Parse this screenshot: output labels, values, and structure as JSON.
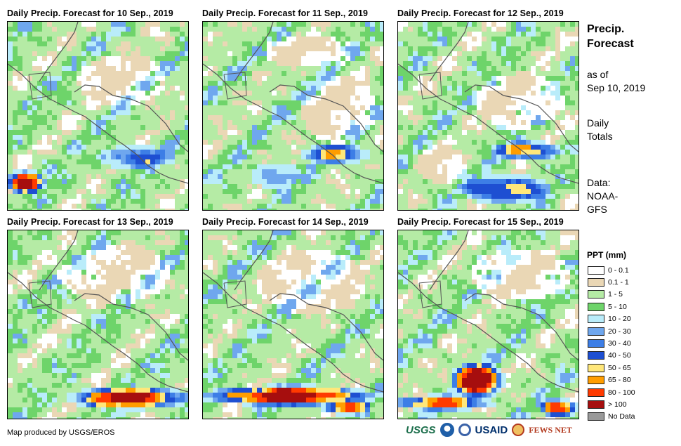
{
  "panels": [
    {
      "title": "Daily Precip. Forecast for 10 Sep., 2019"
    },
    {
      "title": "Daily Precip. Forecast for 11 Sep., 2019"
    },
    {
      "title": "Daily Precip. Forecast for 12 Sep., 2019"
    },
    {
      "title": "Daily Precip. Forecast for 13 Sep., 2019"
    },
    {
      "title": "Daily Precip. Forecast for 14 Sep., 2019"
    },
    {
      "title": "Daily Precip. Forecast for 15 Sep., 2019"
    }
  ],
  "sidebar": {
    "title_line1": "Precip.",
    "title_line2": "Forecast",
    "asof_line1": "as of",
    "asof_line2": "Sep 10, 2019",
    "totals_line1": "Daily",
    "totals_line2": "Totals",
    "data_line1": "Data:",
    "data_line2": "NOAA-",
    "data_line3": "GFS"
  },
  "legend": {
    "title": "PPT (mm)",
    "items": [
      {
        "label": "0 - 0.1",
        "color": "#ffffff"
      },
      {
        "label": "0.1 - 1",
        "color": "#ead7b5"
      },
      {
        "label": "1 - 5",
        "color": "#b5eba5"
      },
      {
        "label": "5 - 10",
        "color": "#6ed46a"
      },
      {
        "label": "10 - 20",
        "color": "#b9ecfa"
      },
      {
        "label": "20 - 30",
        "color": "#6fa7ee"
      },
      {
        "label": "30 - 40",
        "color": "#3d7ee6"
      },
      {
        "label": "40 - 50",
        "color": "#1e4fd2"
      },
      {
        "label": "50 - 65",
        "color": "#ffe77a"
      },
      {
        "label": "65 - 80",
        "color": "#ff9d00"
      },
      {
        "label": "80 - 100",
        "color": "#ff3a00"
      },
      {
        "label": "> 100",
        "color": "#a60e0e"
      },
      {
        "label": "No Data",
        "color": "#999999"
      }
    ]
  },
  "credit": "Map produced by USGS/EROS",
  "logos": {
    "usgs": "USGS",
    "usaid": "USAID",
    "fews": "FEWS NET"
  }
}
